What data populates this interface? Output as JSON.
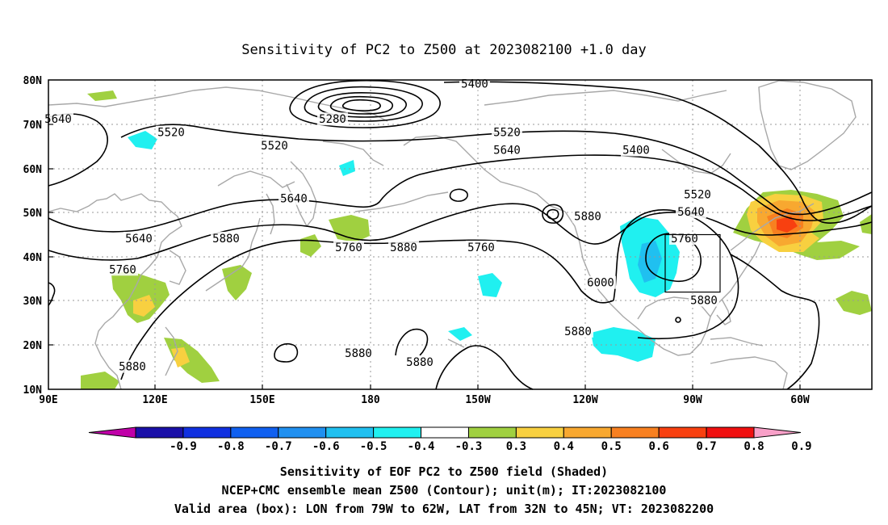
{
  "title": "Sensitivity of PC2 to Z500 at 2023082100 +1.0 day",
  "y_ticks": [
    "80N",
    "70N",
    "60N",
    "50N",
    "40N",
    "30N",
    "20N",
    "10N"
  ],
  "x_ticks": [
    "90E",
    "120E",
    "150E",
    "180",
    "150W",
    "120W",
    "90W",
    "60W"
  ],
  "colorbar": {
    "colors": [
      "#c000a8",
      "#1a10a8",
      "#1030e0",
      "#1060f0",
      "#2090f0",
      "#20c0f0",
      "#20f0f0",
      "#ffffff",
      "#a0d040",
      "#f8d040",
      "#f8a830",
      "#f88020",
      "#f84010",
      "#f01010",
      "#f8a0c8"
    ],
    "labels": [
      "-0.9",
      "-0.8",
      "-0.7",
      "-0.6",
      "-0.5",
      "-0.4",
      "-0.3",
      "0.3",
      "0.4",
      "0.5",
      "0.6",
      "0.7",
      "0.8",
      "0.9"
    ]
  },
  "contour_labels": [
    {
      "text": "5640",
      "lon": 93,
      "lat": 71
    },
    {
      "text": "5520",
      "lon": 128,
      "lat": 68
    },
    {
      "text": "5520",
      "lon": 160,
      "lat": 65
    },
    {
      "text": "5280",
      "lon": 178,
      "lat": 71
    },
    {
      "text": "5400",
      "lon": 222,
      "lat": 79
    },
    {
      "text": "5520",
      "lon": 232,
      "lat": 68
    },
    {
      "text": "5640",
      "lon": 232,
      "lat": 64
    },
    {
      "text": "5400",
      "lon": 272,
      "lat": 64
    },
    {
      "text": "5640",
      "lon": 166,
      "lat": 53
    },
    {
      "text": "5640",
      "lon": 118,
      "lat": 44
    },
    {
      "text": "5880",
      "lon": 145,
      "lat": 44
    },
    {
      "text": "5760",
      "lon": 113,
      "lat": 37
    },
    {
      "text": "5760",
      "lon": 183,
      "lat": 42
    },
    {
      "text": "5880",
      "lon": 200,
      "lat": 42
    },
    {
      "text": "5760",
      "lon": 224,
      "lat": 42
    },
    {
      "text": "5880",
      "lon": 257,
      "lat": 49
    },
    {
      "text": "6000",
      "lon": 261,
      "lat": 34
    },
    {
      "text": "5520",
      "lon": 291,
      "lat": 54
    },
    {
      "text": "5640",
      "lon": 289,
      "lat": 50
    },
    {
      "text": "5760",
      "lon": 287,
      "lat": 44
    },
    {
      "text": "5880",
      "lon": 293,
      "lat": 30
    },
    {
      "text": "5880",
      "lon": 116,
      "lat": 15
    },
    {
      "text": "5880",
      "lon": 186,
      "lat": 18
    },
    {
      "text": "5880",
      "lon": 205,
      "lat": 16
    },
    {
      "text": "5880",
      "lon": 254,
      "lat": 23
    }
  ],
  "caption": {
    "line1": "Sensitivity of EOF PC2 to Z500 field (Shaded)",
    "line2": "NCEP+CMC ensemble mean Z500 (Contour); unit(m); IT:2023082100",
    "line3": "Valid area (box): LON from 79W to 62W, LAT from 32N to 45N; VT: 2023082200"
  },
  "valid_box": {
    "lon_min": 281,
    "lon_max": 298,
    "lat_min": 32,
    "lat_max": 45
  }
}
